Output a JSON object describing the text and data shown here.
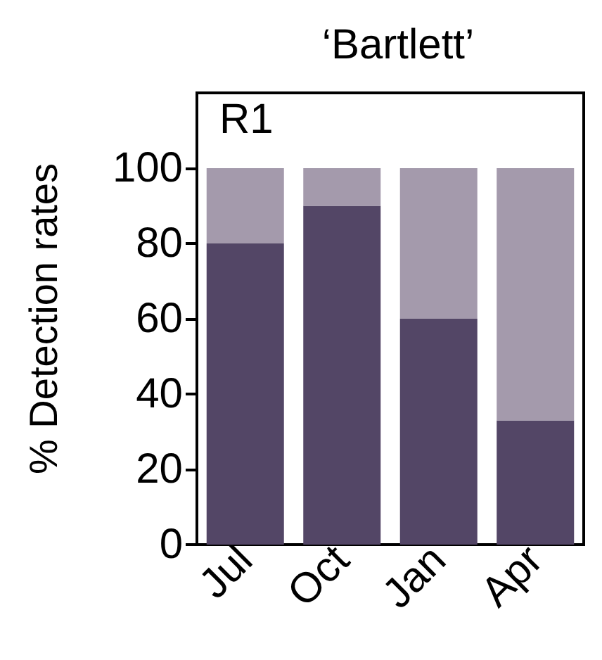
{
  "chart_data": {
    "type": "bar",
    "title": "‘Bartlett’",
    "ylabel": "% Detection rates",
    "categories": [
      "Jul",
      "Oct",
      "Jan",
      "Apr"
    ],
    "stacked": true,
    "series": [
      {
        "color": "#534666",
        "values": [
          80,
          90,
          60,
          33
        ]
      },
      {
        "color": "#a49aac",
        "values": [
          20,
          10,
          40,
          67
        ]
      }
    ],
    "ylim": [
      0,
      120
    ],
    "yticks": [
      0,
      20,
      40,
      60,
      80,
      100
    ],
    "grid": false,
    "annotations": [
      "R1"
    ]
  }
}
